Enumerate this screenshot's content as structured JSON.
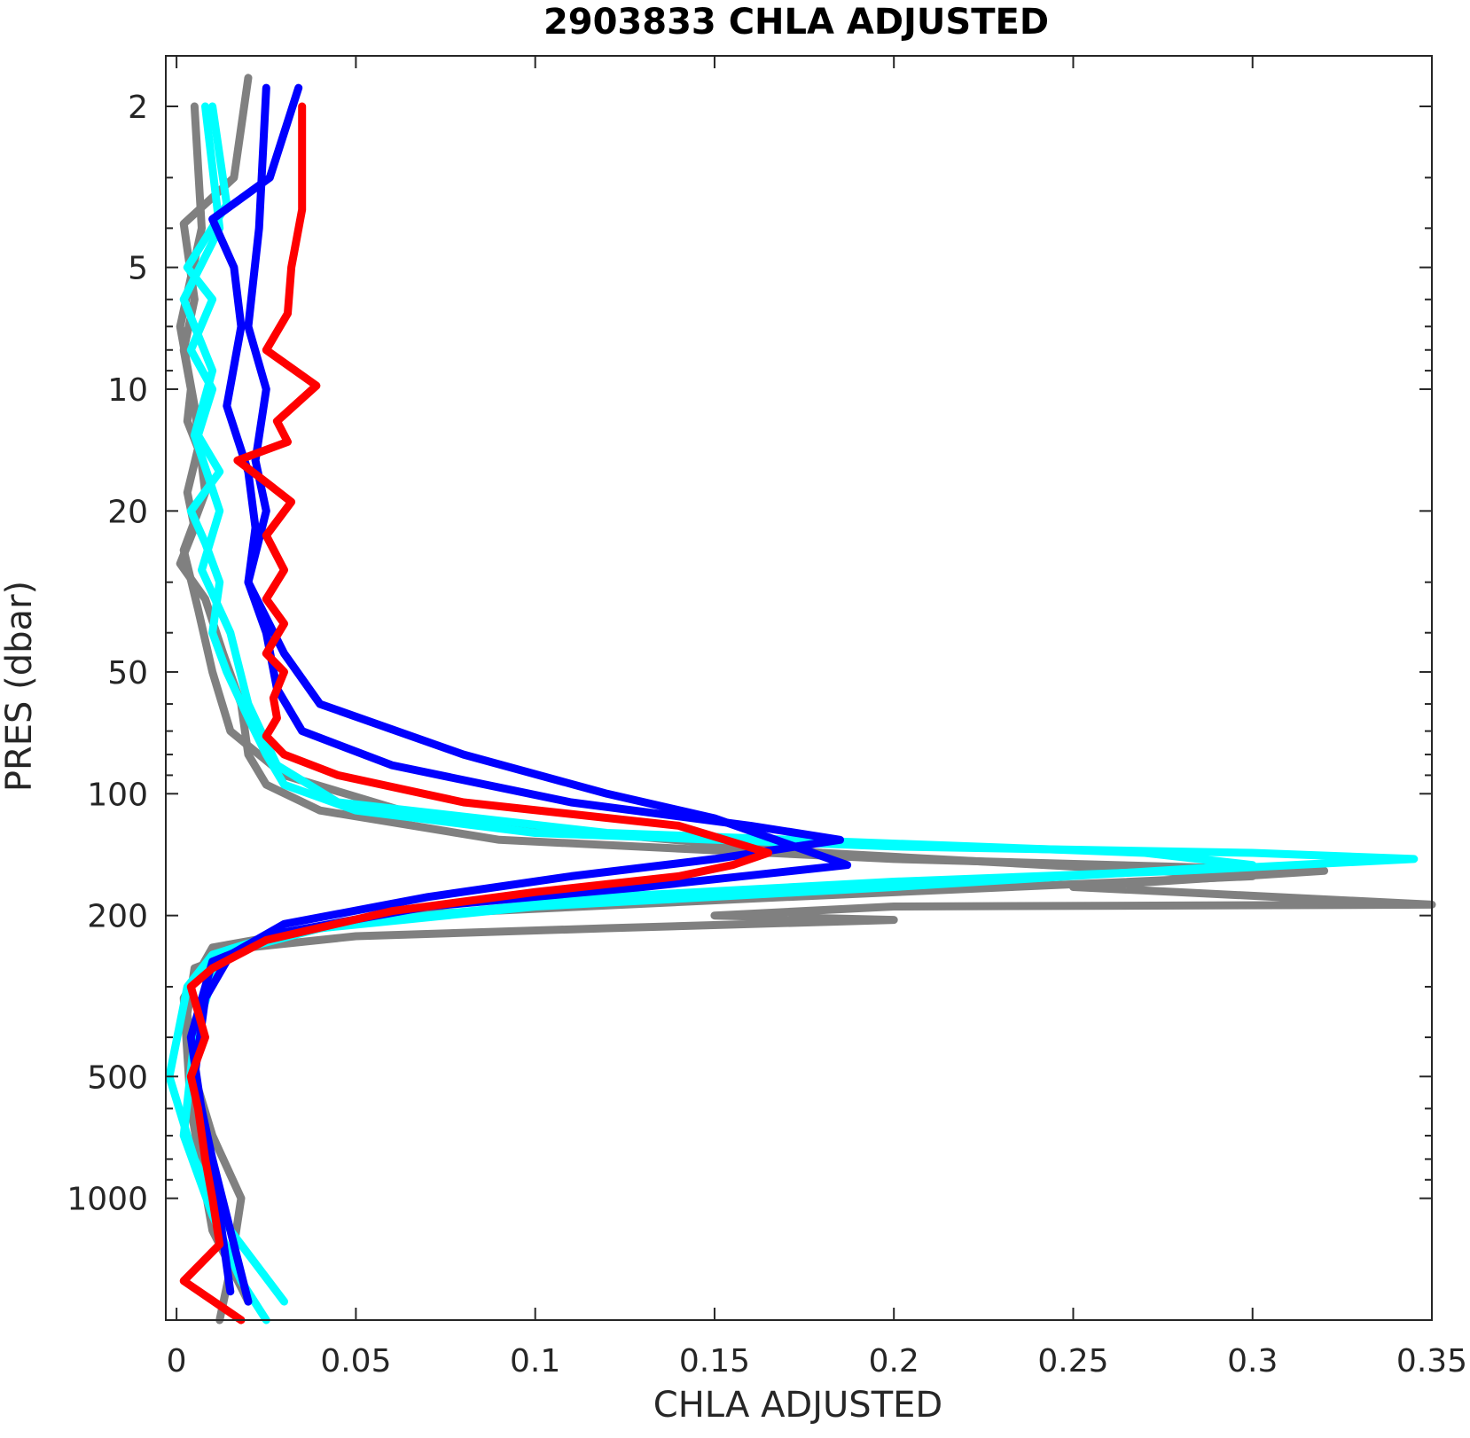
{
  "chart_data": {
    "type": "line",
    "title": "2903833  CHLA ADJUSTED",
    "xlabel": "CHLA ADJUSTED",
    "ylabel": "PRES (dbar)",
    "xlim": [
      -0.003,
      0.35
    ],
    "ylim": [
      1.5,
      2000
    ],
    "y_scale": "log",
    "y_reversed": true,
    "grid": false,
    "x_ticks": [
      0,
      0.05,
      0.1,
      0.15,
      0.2,
      0.25,
      0.3,
      0.35
    ],
    "x_tick_labels": [
      "0",
      "0.05",
      "0.1",
      "0.15",
      "0.2",
      "0.25",
      "0.3",
      "0.35"
    ],
    "y_ticks": [
      2,
      5,
      10,
      20,
      50,
      100,
      200,
      500,
      1000
    ],
    "y_tick_labels": [
      "2",
      "5",
      "10",
      "20",
      "50",
      "100",
      "200",
      "500",
      "1000"
    ],
    "series": [
      {
        "color": "#808080",
        "points": [
          [
            0.02,
            1.7
          ],
          [
            0.016,
            3
          ],
          [
            0.002,
            3.9
          ],
          [
            0.005,
            6
          ],
          [
            0.002,
            8
          ],
          [
            0.004,
            10
          ],
          [
            0.003,
            12
          ],
          [
            0.006,
            14
          ],
          [
            0.003,
            18
          ],
          [
            0.005,
            22
          ],
          [
            0.001,
            27
          ],
          [
            0.008,
            33
          ],
          [
            0.013,
            45
          ],
          [
            0.018,
            60
          ],
          [
            0.02,
            80
          ],
          [
            0.025,
            95
          ],
          [
            0.04,
            110
          ],
          [
            0.09,
            130
          ],
          [
            0.2,
            145
          ],
          [
            0.32,
            155
          ],
          [
            0.25,
            170
          ],
          [
            0.35,
            188
          ],
          [
            0.2,
            190
          ],
          [
            0.15,
            200
          ],
          [
            0.2,
            205
          ],
          [
            0.12,
            215
          ],
          [
            0.05,
            225
          ],
          [
            0.02,
            240
          ],
          [
            0.005,
            270
          ],
          [
            0.003,
            350
          ],
          [
            0.005,
            500
          ],
          [
            0.01,
            700
          ],
          [
            0.018,
            1000
          ],
          [
            0.015,
            1500
          ],
          [
            0.012,
            2000
          ]
        ]
      },
      {
        "color": "#808080",
        "points": [
          [
            0.005,
            2
          ],
          [
            0.007,
            4
          ],
          [
            0.001,
            7
          ],
          [
            0.005,
            11
          ],
          [
            0.008,
            18
          ],
          [
            0.002,
            25
          ],
          [
            0.006,
            35
          ],
          [
            0.01,
            50
          ],
          [
            0.015,
            70
          ],
          [
            0.03,
            90
          ],
          [
            0.07,
            115
          ],
          [
            0.18,
            140
          ],
          [
            0.3,
            160
          ],
          [
            0.17,
            180
          ],
          [
            0.06,
            200
          ],
          [
            0.01,
            240
          ],
          [
            0.002,
            320
          ],
          [
            0.004,
            600
          ],
          [
            0.01,
            1200
          ],
          [
            0.02,
            1800
          ]
        ]
      },
      {
        "color": "#00ffff",
        "points": [
          [
            0.01,
            2
          ],
          [
            0.014,
            3.5
          ],
          [
            0.003,
            5
          ],
          [
            0.01,
            6
          ],
          [
            0.004,
            8
          ],
          [
            0.01,
            10
          ],
          [
            0.006,
            13
          ],
          [
            0.012,
            16
          ],
          [
            0.004,
            20
          ],
          [
            0.008,
            24
          ],
          [
            0.012,
            30
          ],
          [
            0.01,
            40
          ],
          [
            0.014,
            50
          ],
          [
            0.02,
            65
          ],
          [
            0.025,
            80
          ],
          [
            0.03,
            95
          ],
          [
            0.05,
            110
          ],
          [
            0.1,
            125
          ],
          [
            0.2,
            135
          ],
          [
            0.3,
            140
          ],
          [
            0.345,
            145
          ],
          [
            0.28,
            155
          ],
          [
            0.2,
            165
          ],
          [
            0.12,
            180
          ],
          [
            0.07,
            200
          ],
          [
            0.03,
            220
          ],
          [
            0.01,
            250
          ],
          [
            0.003,
            300
          ],
          [
            -0.002,
            500
          ],
          [
            0.005,
            800
          ],
          [
            0.015,
            1200
          ],
          [
            0.03,
            1800
          ]
        ]
      },
      {
        "color": "#00ffff",
        "points": [
          [
            0.008,
            2
          ],
          [
            0.012,
            4
          ],
          [
            0.002,
            6
          ],
          [
            0.01,
            9
          ],
          [
            0.005,
            13
          ],
          [
            0.012,
            20
          ],
          [
            0.007,
            28
          ],
          [
            0.015,
            40
          ],
          [
            0.02,
            60
          ],
          [
            0.028,
            85
          ],
          [
            0.045,
            105
          ],
          [
            0.12,
            125
          ],
          [
            0.27,
            140
          ],
          [
            0.3,
            150
          ],
          [
            0.2,
            170
          ],
          [
            0.1,
            190
          ],
          [
            0.04,
            215
          ],
          [
            0.012,
            250
          ],
          [
            0.005,
            400
          ],
          [
            0.002,
            700
          ],
          [
            0.01,
            1100
          ],
          [
            0.018,
            1600
          ],
          [
            0.025,
            2000
          ]
        ]
      },
      {
        "color": "#0000ff",
        "points": [
          [
            0.034,
            1.8
          ],
          [
            0.026,
            3
          ],
          [
            0.01,
            3.8
          ],
          [
            0.016,
            5
          ],
          [
            0.018,
            7
          ],
          [
            0.014,
            11
          ],
          [
            0.02,
            16
          ],
          [
            0.022,
            22
          ],
          [
            0.02,
            30
          ],
          [
            0.025,
            40
          ],
          [
            0.028,
            55
          ],
          [
            0.035,
            70
          ],
          [
            0.06,
            85
          ],
          [
            0.11,
            105
          ],
          [
            0.16,
            120
          ],
          [
            0.185,
            130
          ],
          [
            0.15,
            145
          ],
          [
            0.11,
            160
          ],
          [
            0.07,
            180
          ],
          [
            0.03,
            210
          ],
          [
            0.015,
            250
          ],
          [
            0.008,
            320
          ],
          [
            0.005,
            500
          ],
          [
            0.01,
            800
          ],
          [
            0.015,
            1200
          ],
          [
            0.02,
            1800
          ]
        ]
      },
      {
        "color": "#0000ff",
        "points": [
          [
            0.025,
            1.8
          ],
          [
            0.023,
            4
          ],
          [
            0.02,
            7
          ],
          [
            0.025,
            10
          ],
          [
            0.022,
            15
          ],
          [
            0.025,
            20
          ],
          [
            0.02,
            30
          ],
          [
            0.03,
            45
          ],
          [
            0.04,
            60
          ],
          [
            0.08,
            80
          ],
          [
            0.12,
            100
          ],
          [
            0.15,
            115
          ],
          [
            0.187,
            150
          ],
          [
            0.13,
            170
          ],
          [
            0.07,
            190
          ],
          [
            0.03,
            220
          ],
          [
            0.01,
            260
          ],
          [
            0.004,
            400
          ],
          [
            0.008,
            700
          ],
          [
            0.012,
            1100
          ],
          [
            0.015,
            1700
          ]
        ]
      },
      {
        "color": "#ff0000",
        "points": [
          [
            0.035,
            2
          ],
          [
            0.035,
            3.6
          ],
          [
            0.032,
            5
          ],
          [
            0.031,
            6.5
          ],
          [
            0.025,
            8
          ],
          [
            0.039,
            9.8
          ],
          [
            0.028,
            12
          ],
          [
            0.031,
            13.5
          ],
          [
            0.017,
            15
          ],
          [
            0.025,
            17
          ],
          [
            0.032,
            19
          ],
          [
            0.025,
            23
          ],
          [
            0.03,
            28
          ],
          [
            0.025,
            33
          ],
          [
            0.03,
            38
          ],
          [
            0.025,
            45
          ],
          [
            0.03,
            50
          ],
          [
            0.027,
            58
          ],
          [
            0.028,
            65
          ],
          [
            0.025,
            72
          ],
          [
            0.03,
            80
          ],
          [
            0.045,
            90
          ],
          [
            0.08,
            105
          ],
          [
            0.14,
            120
          ],
          [
            0.165,
            140
          ],
          [
            0.155,
            150
          ],
          [
            0.14,
            160
          ],
          [
            0.1,
            175
          ],
          [
            0.06,
            195
          ],
          [
            0.025,
            230
          ],
          [
            0.01,
            270
          ],
          [
            0.004,
            300
          ],
          [
            0.008,
            400
          ],
          [
            0.004,
            500
          ],
          [
            0.006,
            600
          ],
          [
            0.008,
            800
          ],
          [
            0.01,
            1000
          ],
          [
            0.012,
            1300
          ],
          [
            0.002,
            1600
          ],
          [
            0.018,
            2000
          ]
        ]
      }
    ]
  }
}
